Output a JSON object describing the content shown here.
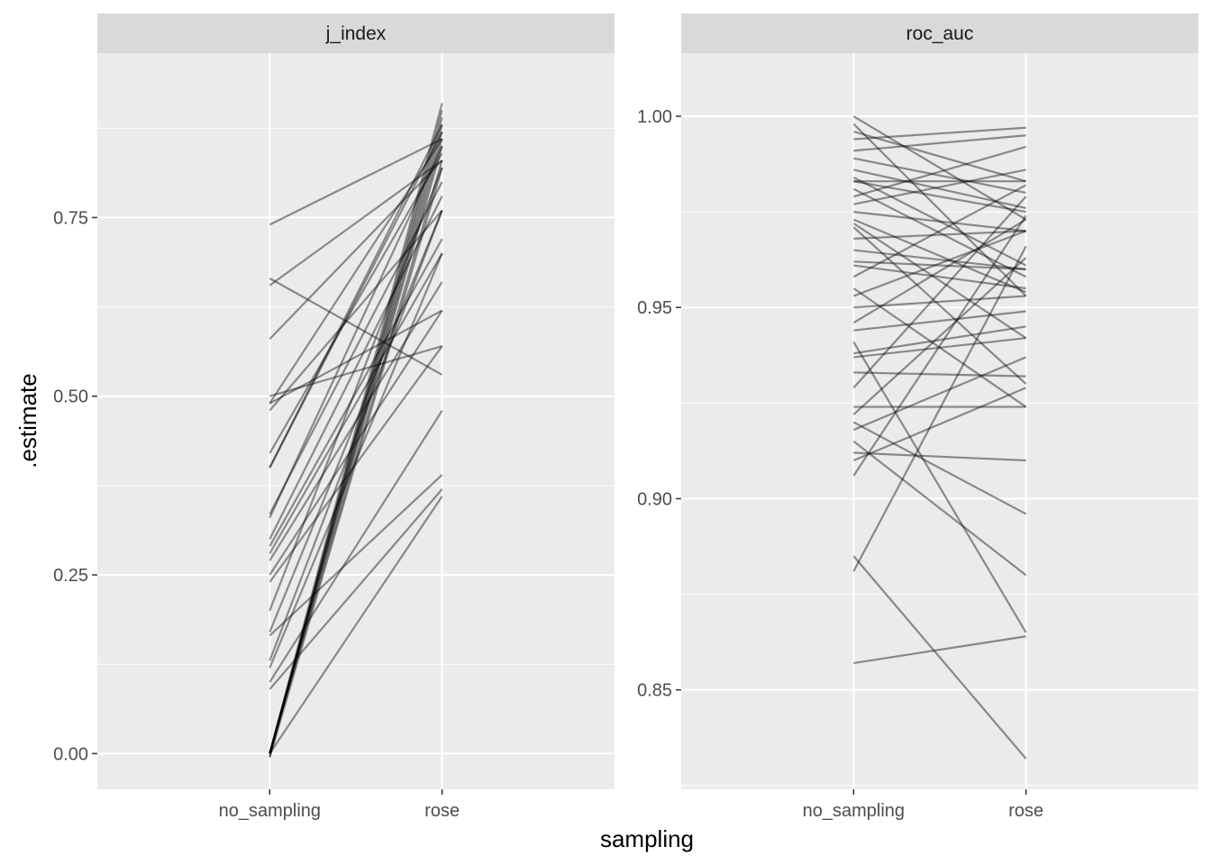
{
  "chart_data": {
    "type": "line",
    "xlabel": "sampling",
    "ylabel": ".estimate",
    "categories": [
      "no_sampling",
      "rose"
    ],
    "grid": true,
    "panels": [
      {
        "title": "j_index",
        "ylim": [
          -0.05,
          0.98
        ],
        "yticks": [
          0.0,
          0.25,
          0.5,
          0.75
        ],
        "ytick_labels": [
          "0.00",
          "0.25",
          "0.50",
          "0.75"
        ],
        "lines": [
          [
            0.74,
            0.86
          ],
          [
            0.665,
            0.53
          ],
          [
            0.655,
            0.83
          ],
          [
            0.58,
            0.83
          ],
          [
            0.5,
            0.57
          ],
          [
            0.49,
            0.62
          ],
          [
            0.49,
            0.86
          ],
          [
            0.48,
            0.76
          ],
          [
            0.42,
            0.84
          ],
          [
            0.4,
            0.87
          ],
          [
            0.4,
            0.88
          ],
          [
            0.335,
            0.8
          ],
          [
            0.33,
            0.85
          ],
          [
            0.3,
            0.78
          ],
          [
            0.29,
            0.72
          ],
          [
            0.28,
            0.7
          ],
          [
            0.27,
            0.66
          ],
          [
            0.25,
            0.62
          ],
          [
            0.24,
            0.57
          ],
          [
            0.2,
            0.82
          ],
          [
            0.17,
            0.76
          ],
          [
            0.165,
            0.39
          ],
          [
            0.13,
            0.76
          ],
          [
            0.12,
            0.7
          ],
          [
            0.1,
            0.48
          ],
          [
            0.09,
            0.37
          ],
          [
            0.0,
            0.91
          ],
          [
            0.0,
            0.89
          ],
          [
            0.0,
            0.88
          ],
          [
            0.0,
            0.87
          ],
          [
            0.0,
            0.86
          ],
          [
            0.0,
            0.85
          ],
          [
            0.0,
            0.83
          ],
          [
            0.0,
            0.36
          ],
          [
            -0.005,
            0.82
          ],
          [
            -0.005,
            0.9
          ]
        ]
      },
      {
        "title": "roc_auc",
        "ylim": [
          0.824,
          1.0165
        ],
        "yticks": [
          0.85,
          0.9,
          0.95,
          1.0
        ],
        "ytick_labels": [
          "0.85",
          "0.90",
          "0.95",
          "1.00"
        ],
        "lines": [
          [
            1.0,
            0.973
          ],
          [
            0.998,
            0.953
          ],
          [
            0.996,
            0.983
          ],
          [
            0.994,
            0.997
          ],
          [
            0.991,
            0.995
          ],
          [
            0.989,
            0.98
          ],
          [
            0.986,
            0.976
          ],
          [
            0.984,
            0.961
          ],
          [
            0.983,
            0.975
          ],
          [
            0.983,
            0.983
          ],
          [
            0.981,
            0.958
          ],
          [
            0.979,
            0.992
          ],
          [
            0.977,
            0.986
          ],
          [
            0.975,
            0.97
          ],
          [
            0.973,
            0.954
          ],
          [
            0.972,
            0.942
          ],
          [
            0.971,
            0.93
          ],
          [
            0.968,
            0.97
          ],
          [
            0.965,
            0.96
          ],
          [
            0.962,
            0.96
          ],
          [
            0.961,
            0.955
          ],
          [
            0.958,
            0.982
          ],
          [
            0.955,
            0.924
          ],
          [
            0.953,
            0.97
          ],
          [
            0.95,
            0.953
          ],
          [
            0.946,
            0.973
          ],
          [
            0.944,
            0.949
          ],
          [
            0.941,
            0.865
          ],
          [
            0.938,
            0.945
          ],
          [
            0.937,
            0.942
          ],
          [
            0.933,
            0.932
          ],
          [
            0.929,
            0.979
          ],
          [
            0.924,
            0.924
          ],
          [
            0.922,
            0.963
          ],
          [
            0.92,
            0.896
          ],
          [
            0.918,
            0.937
          ],
          [
            0.915,
            0.88
          ],
          [
            0.912,
            0.91
          ],
          [
            0.91,
            0.929
          ],
          [
            0.906,
            0.974
          ],
          [
            0.885,
            0.832
          ],
          [
            0.881,
            0.966
          ],
          [
            0.857,
            0.864
          ]
        ]
      }
    ]
  }
}
